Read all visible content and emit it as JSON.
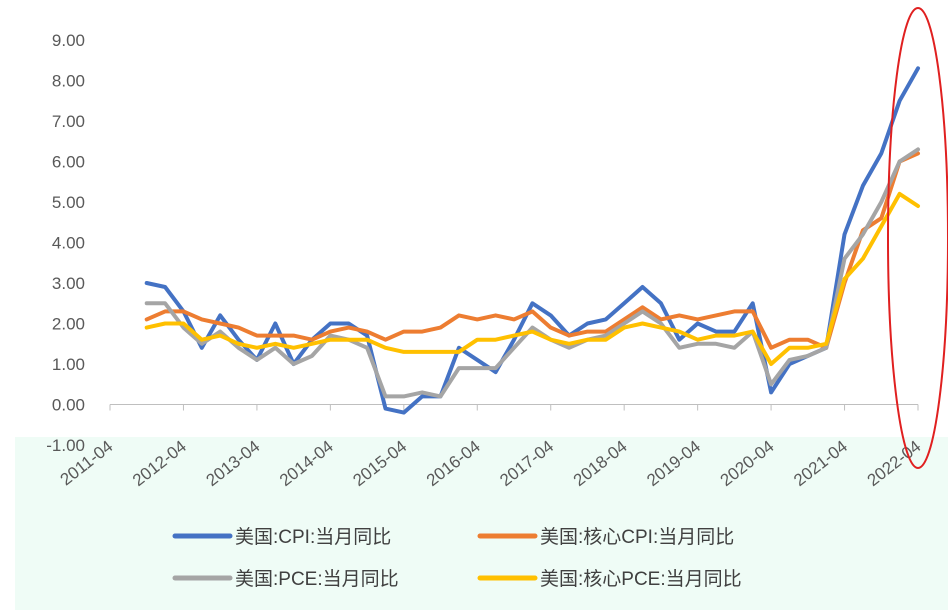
{
  "chart_data": {
    "type": "line",
    "categories": [
      "2011-04",
      null,
      null,
      null,
      "2012-04",
      null,
      null,
      null,
      "2013-04",
      null,
      null,
      null,
      "2014-04",
      null,
      null,
      null,
      "2015-04",
      null,
      null,
      null,
      "2016-04",
      null,
      null,
      null,
      "2017-04",
      null,
      null,
      null,
      "2018-04",
      null,
      null,
      null,
      "2019-04",
      null,
      null,
      null,
      "2020-04",
      null,
      null,
      null,
      "2021-04",
      null,
      null,
      null,
      "2022-04"
    ],
    "ylim": [
      -1,
      9
    ],
    "yticks": [
      {
        "value": -1,
        "label": "-1.00"
      },
      {
        "value": 0,
        "label": "0.00"
      },
      {
        "value": 1,
        "label": "1.00"
      },
      {
        "value": 2,
        "label": "2.00"
      },
      {
        "value": 3,
        "label": "3.00"
      },
      {
        "value": 4,
        "label": "4.00"
      },
      {
        "value": 5,
        "label": "5.00"
      },
      {
        "value": 6,
        "label": "6.00"
      },
      {
        "value": 7,
        "label": "7.00"
      },
      {
        "value": 8,
        "label": "8.00"
      },
      {
        "value": 9,
        "label": "9.00"
      }
    ],
    "grid": false,
    "series": [
      {
        "name": "美国:CPI:当月同比",
        "color": "#4472c4",
        "values": [
          null,
          null,
          3.0,
          2.9,
          2.3,
          1.4,
          2.2,
          1.6,
          1.1,
          2.0,
          1.0,
          1.6,
          2.0,
          2.0,
          1.7,
          -0.1,
          -0.2,
          0.2,
          0.2,
          1.4,
          1.1,
          0.8,
          1.6,
          2.5,
          2.2,
          1.7,
          2.0,
          2.1,
          2.5,
          2.9,
          2.5,
          1.6,
          2.0,
          1.8,
          1.8,
          2.5,
          0.3,
          1.0,
          1.2,
          1.4,
          4.2,
          5.4,
          6.2,
          7.5,
          8.3
        ]
      },
      {
        "name": "美国:核心CPI:当月同比",
        "color": "#ed7d31",
        "values": [
          null,
          null,
          2.1,
          2.3,
          2.3,
          2.1,
          2.0,
          1.9,
          1.7,
          1.7,
          1.7,
          1.6,
          1.8,
          1.9,
          1.8,
          1.6,
          1.8,
          1.8,
          1.9,
          2.2,
          2.1,
          2.2,
          2.1,
          2.3,
          1.9,
          1.7,
          1.8,
          1.8,
          2.1,
          2.4,
          2.1,
          2.2,
          2.1,
          2.2,
          2.3,
          2.3,
          1.4,
          1.6,
          1.6,
          1.4,
          3.0,
          4.3,
          4.6,
          6.0,
          6.2
        ]
      },
      {
        "name": "美国:PCE:当月同比",
        "color": "#a5a5a5",
        "values": [
          null,
          null,
          2.5,
          2.5,
          1.9,
          1.5,
          1.8,
          1.4,
          1.1,
          1.4,
          1.0,
          1.2,
          1.7,
          1.6,
          1.4,
          0.2,
          0.2,
          0.3,
          0.2,
          0.9,
          0.9,
          0.9,
          1.4,
          1.9,
          1.6,
          1.4,
          1.6,
          1.7,
          2.0,
          2.3,
          2.0,
          1.4,
          1.5,
          1.5,
          1.4,
          1.8,
          0.5,
          1.1,
          1.2,
          1.4,
          3.6,
          4.2,
          5.0,
          6.0,
          6.3
        ]
      },
      {
        "name": "美国:核心PCE:当月同比",
        "color": "#ffc000",
        "values": [
          null,
          null,
          1.9,
          2.0,
          2.0,
          1.6,
          1.7,
          1.5,
          1.4,
          1.5,
          1.4,
          1.5,
          1.6,
          1.6,
          1.6,
          1.4,
          1.3,
          1.3,
          1.3,
          1.3,
          1.6,
          1.6,
          1.7,
          1.8,
          1.6,
          1.5,
          1.6,
          1.6,
          1.9,
          2.0,
          1.9,
          1.8,
          1.6,
          1.7,
          1.7,
          1.8,
          1.0,
          1.4,
          1.4,
          1.5,
          3.1,
          3.6,
          4.4,
          5.2,
          4.9
        ]
      }
    ]
  }
}
